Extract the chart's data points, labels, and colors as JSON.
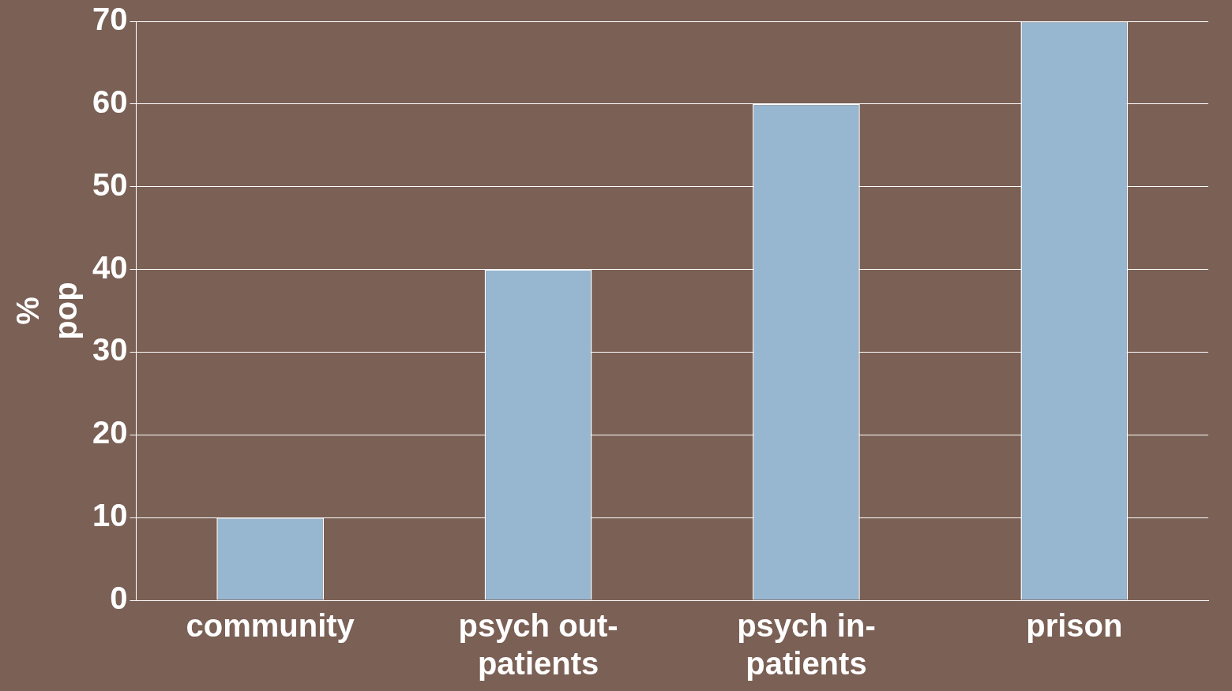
{
  "chart_data": {
    "type": "bar",
    "ylabel": "% pop",
    "categories": [
      "community",
      "psych out-patients",
      "psych in-patients",
      "prison"
    ],
    "values": [
      10,
      40,
      60,
      70
    ],
    "color": "#97b6d0",
    "ylim": [
      0,
      70
    ],
    "yticks": [
      0,
      10,
      20,
      30,
      40,
      50,
      60,
      70
    ],
    "grid": "y"
  }
}
